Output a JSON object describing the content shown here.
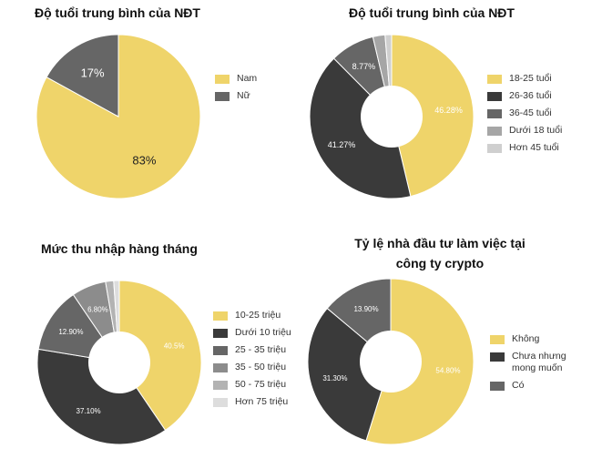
{
  "chart_data": [
    {
      "type": "pie",
      "title": "Độ tuổi trung bình của NĐT",
      "categories": [
        "Nam",
        "Nữ"
      ],
      "values": [
        83,
        17
      ],
      "labels": [
        "83%",
        "17%"
      ],
      "colors": [
        "#efd46a",
        "#666666"
      ],
      "legend": "right"
    },
    {
      "type": "pie",
      "title": "Độ tuổi trung bình của NĐT",
      "categories": [
        "18-25 tuổi",
        "26-36 tuổi",
        "36-45 tuổi",
        "Dưới 18 tuổi",
        "Hơn 45 tuổi"
      ],
      "values": [
        46.28,
        41.27,
        8.77,
        2.4,
        1.28
      ],
      "labels": [
        "46.28%",
        "41.27%",
        "8.77%",
        "",
        ""
      ],
      "colors": [
        "#efd46a",
        "#3a3a3a",
        "#666666",
        "#a6a6a6",
        "#cfcfcf"
      ],
      "legend": "right"
    },
    {
      "type": "pie",
      "title": "Mức thu nhập hàng tháng",
      "categories": [
        "10-25 triệu",
        "Dưới 10 triệu",
        "25 - 35 triệu",
        "35 - 50 triệu",
        "50 - 75 triệu",
        "Hơn 75 triệu"
      ],
      "values": [
        40.5,
        37.1,
        12.9,
        6.8,
        1.6,
        1.1
      ],
      "labels": [
        "40.5%",
        "37.10%",
        "12.90%",
        "6.80%",
        "",
        ""
      ],
      "colors": [
        "#efd46a",
        "#3a3a3a",
        "#666666",
        "#8c8c8c",
        "#b3b3b3",
        "#dddddd"
      ],
      "legend": "right"
    },
    {
      "type": "pie",
      "title": "Tỷ lệ nhà đầu tư làm việc tại công ty crypto",
      "categories": [
        "Không",
        "Chưa nhưng mong muốn",
        "Có"
      ],
      "values": [
        54.8,
        31.3,
        13.9
      ],
      "labels": [
        "54.80%",
        "31.30%",
        "13.90%"
      ],
      "legend_labels": [
        "Không",
        "Chưa nhưng\nmong muốn",
        "Có"
      ],
      "colors": [
        "#efd46a",
        "#3a3a3a",
        "#666666"
      ],
      "legend": "right"
    }
  ]
}
